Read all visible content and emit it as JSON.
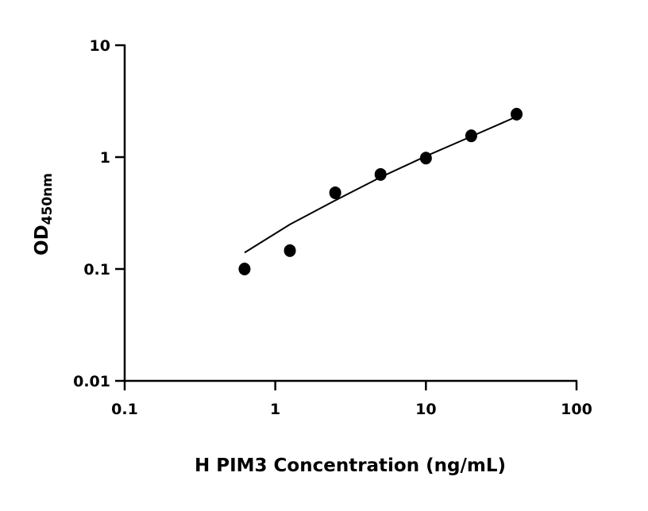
{
  "chart_data": {
    "type": "scatter",
    "title": "",
    "xlabel": "H PIM3 Concentration (ng/mL)",
    "ylabel_main": "OD",
    "ylabel_sub": "450nm",
    "x_scale": "log",
    "y_scale": "log",
    "xlim": [
      0.1,
      100
    ],
    "ylim": [
      0.01,
      10
    ],
    "x_ticks": [
      "0.1",
      "1",
      "10",
      "100"
    ],
    "y_ticks": [
      "0.01",
      "0.1",
      "1",
      "10"
    ],
    "grid": false,
    "legend": "none",
    "points": {
      "x": [
        0.625,
        1.25,
        2.5,
        5,
        10,
        20,
        40
      ],
      "y": [
        0.1,
        0.146,
        0.48,
        0.7,
        0.98,
        1.55,
        2.42
      ]
    },
    "fit_curve": {
      "x": [
        0.625,
        1.25,
        2.5,
        5,
        10,
        20,
        40
      ],
      "y": [
        0.14,
        0.25,
        0.41,
        0.66,
        1.02,
        1.53,
        2.3
      ]
    },
    "colors": {
      "points": "#000000",
      "line": "#000000",
      "axes": "#000000"
    }
  }
}
